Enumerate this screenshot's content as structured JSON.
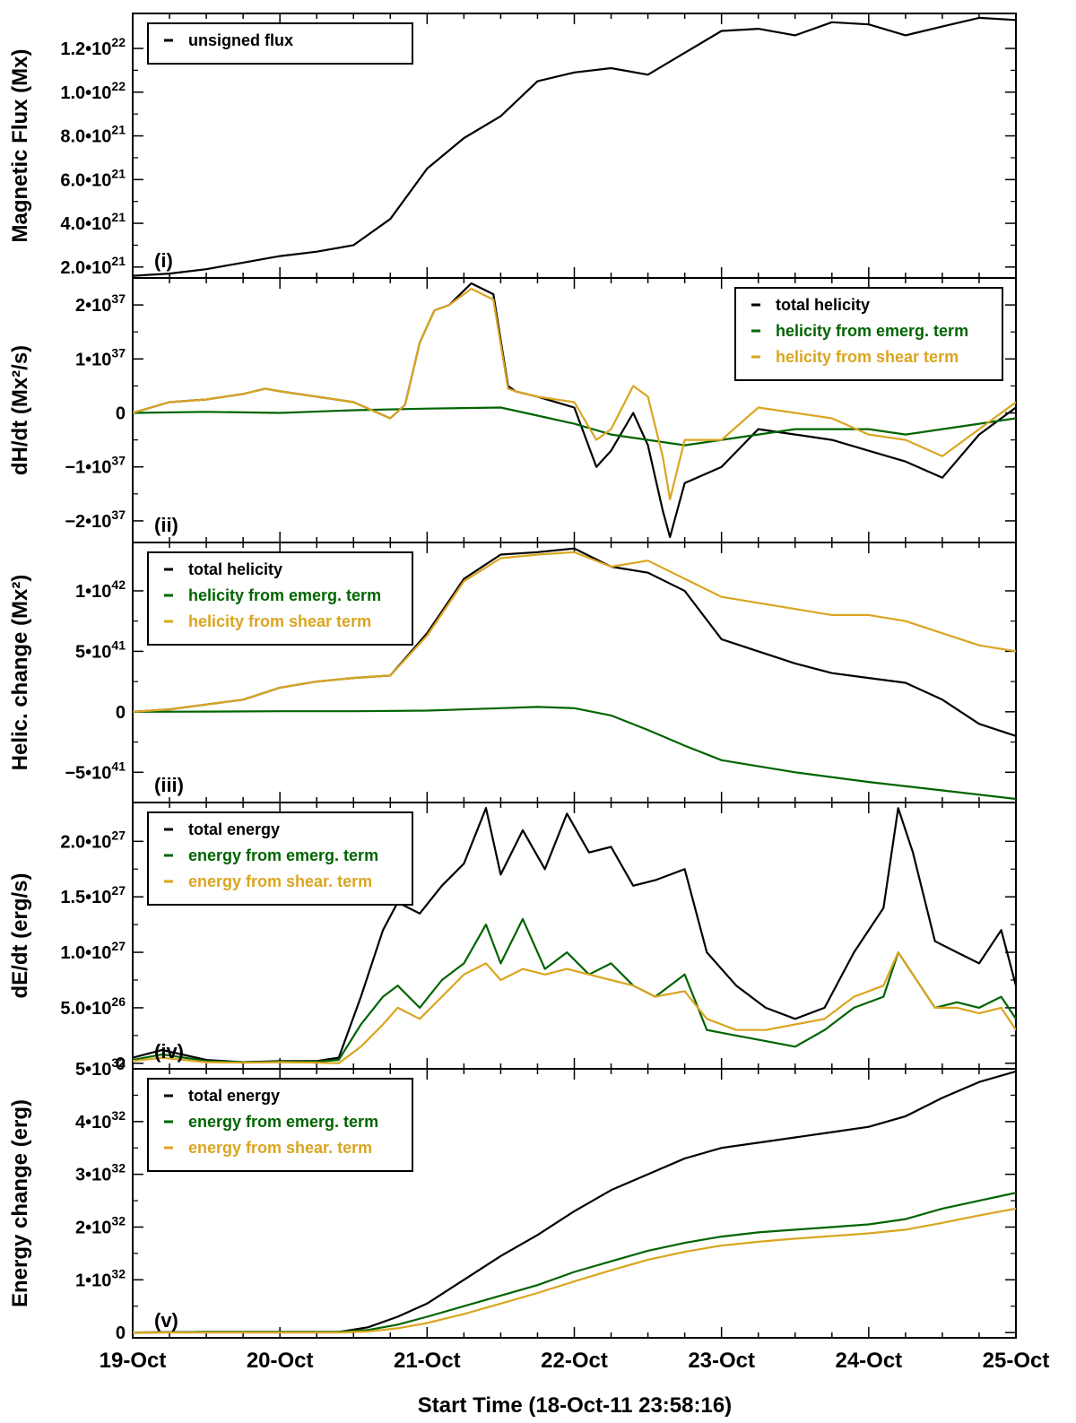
{
  "figure": {
    "xlabel": "Start Time (18-Oct-11 23:58:16)",
    "xticks": [
      "19-Oct",
      "20-Oct",
      "21-Oct",
      "22-Oct",
      "23-Oct",
      "24-Oct",
      "25-Oct"
    ],
    "xrange_days": [
      0.0,
      6.0
    ]
  },
  "colors": {
    "total": "#000000",
    "emerg": "#006400",
    "shear": "#DAA520"
  },
  "chart_data": [
    {
      "type": "line",
      "tag": "(i)",
      "ylabel": "Magnetic Flux (Mx)",
      "ylim": [
        1.5e+21,
        1.36e+22
      ],
      "yticks": [
        {
          "v": 2e+21,
          "m": "2.0•10",
          "e": "21"
        },
        {
          "v": 4e+21,
          "m": "4.0•10",
          "e": "21"
        },
        {
          "v": 6e+21,
          "m": "6.0•10",
          "e": "21"
        },
        {
          "v": 8e+21,
          "m": "8.0•10",
          "e": "21"
        },
        {
          "v": 1e+22,
          "m": "1.0•10",
          "e": "22"
        },
        {
          "v": 1.2e+22,
          "m": "1.2•10",
          "e": "22"
        }
      ],
      "legend": {
        "position": "top-left"
      },
      "series": [
        {
          "name": "unsigned flux",
          "color": "#000000",
          "x": [
            0.0,
            0.25,
            0.5,
            0.75,
            1.0,
            1.25,
            1.5,
            1.75,
            2.0,
            2.25,
            2.5,
            2.75,
            3.0,
            3.25,
            3.5,
            3.75,
            4.0,
            4.25,
            4.5,
            4.75,
            5.0,
            5.25,
            5.5,
            5.75,
            6.0
          ],
          "y": [
            1.6e+21,
            1.7e+21,
            1.9e+21,
            2.2e+21,
            2.5e+21,
            2.7e+21,
            3e+21,
            4.2e+21,
            6.5e+21,
            7.9e+21,
            8.9e+21,
            1.05e+22,
            1.09e+22,
            1.11e+22,
            1.08e+22,
            1.18e+22,
            1.28e+22,
            1.29e+22,
            1.26e+22,
            1.32e+22,
            1.31e+22,
            1.26e+22,
            1.3e+22,
            1.34e+22,
            1.33e+22
          ]
        }
      ]
    },
    {
      "type": "line",
      "tag": "(ii)",
      "ylabel": "dH/dt (Mx²/s)",
      "ylim": [
        -2.4e+37,
        2.5e+37
      ],
      "yticks": [
        {
          "v": -2e+37,
          "m": "−2•10",
          "e": "37"
        },
        {
          "v": -1e+37,
          "m": "−1•10",
          "e": "37"
        },
        {
          "v": 0,
          "m": "0",
          "e": ""
        },
        {
          "v": 1e+37,
          "m": "1•10",
          "e": "37"
        },
        {
          "v": 2e+37,
          "m": "2•10",
          "e": "37"
        }
      ],
      "legend": {
        "position": "top-right"
      },
      "series": [
        {
          "name": "total helicity",
          "color": "#000000",
          "x": [
            0.0,
            0.25,
            0.5,
            0.75,
            0.9,
            1.0,
            1.25,
            1.5,
            1.75,
            1.85,
            1.95,
            2.05,
            2.15,
            2.3,
            2.45,
            2.55,
            2.6,
            2.75,
            3.0,
            3.15,
            3.25,
            3.4,
            3.5,
            3.6,
            3.65,
            3.75,
            4.0,
            4.25,
            4.5,
            4.75,
            5.0,
            5.25,
            5.5,
            5.75,
            6.0
          ],
          "y": [
            0,
            2e+36,
            2.5e+36,
            3.5e+36,
            4.5e+36,
            4e+36,
            3e+36,
            2e+36,
            -1e+36,
            1.5e+36,
            1.3e+37,
            1.9e+37,
            2e+37,
            2.4e+37,
            2.2e+37,
            5e+36,
            4e+36,
            3e+36,
            1e+36,
            -1e+37,
            -7e+36,
            0.0,
            -6e+36,
            -1.8e+37,
            -2.3e+37,
            -1.3e+37,
            -1e+37,
            -3e+36,
            -4e+36,
            -5e+36,
            -7e+36,
            -9e+36,
            -1.2e+37,
            -4e+36,
            1e+36
          ]
        },
        {
          "name": "helicity from emerg. term",
          "color": "#006400",
          "x": [
            0.0,
            0.5,
            1.0,
            1.5,
            2.0,
            2.5,
            2.75,
            3.0,
            3.25,
            3.5,
            3.75,
            4.0,
            4.25,
            4.5,
            4.75,
            5.0,
            5.25,
            5.5,
            5.75,
            6.0
          ],
          "y": [
            0,
            2e+35,
            0.0,
            5e+35,
            8e+35,
            1e+36,
            -5e+35,
            -2e+36,
            -4e+36,
            -5e+36,
            -6e+36,
            -5e+36,
            -4e+36,
            -3e+36,
            -3e+36,
            -3e+36,
            -4e+36,
            -3e+36,
            -2e+36,
            -1e+36
          ]
        },
        {
          "name": "helicity from shear term",
          "color": "#DAA520",
          "x": [
            0.0,
            0.25,
            0.5,
            0.75,
            0.9,
            1.0,
            1.25,
            1.5,
            1.75,
            1.85,
            1.95,
            2.05,
            2.15,
            2.3,
            2.45,
            2.55,
            2.6,
            2.75,
            3.0,
            3.15,
            3.25,
            3.4,
            3.5,
            3.6,
            3.65,
            3.75,
            4.0,
            4.25,
            4.5,
            4.75,
            5.0,
            5.25,
            5.5,
            5.75,
            6.0
          ],
          "y": [
            0,
            2e+36,
            2.5e+36,
            3.5e+36,
            4.5e+36,
            4e+36,
            3e+36,
            2e+36,
            -1e+36,
            1.5e+36,
            1.3e+37,
            1.9e+37,
            2e+37,
            2.3e+37,
            2.1e+37,
            4.5e+36,
            4e+36,
            3e+36,
            2e+36,
            -5e+36,
            -3e+36,
            5e+36,
            3e+36,
            -8e+36,
            -1.6e+37,
            -5e+36,
            -5e+36,
            1e+36,
            0.0,
            -1e+36,
            -4e+36,
            -5e+36,
            -8e+36,
            -3e+36,
            2e+36
          ]
        }
      ]
    },
    {
      "type": "line",
      "tag": "(iii)",
      "ylabel": "Helic. change (Mx²)",
      "ylim": [
        -7.5e+41,
        1.4e+42
      ],
      "yticks": [
        {
          "v": -5e+41,
          "m": "−5•10",
          "e": "41"
        },
        {
          "v": 0,
          "m": "0",
          "e": ""
        },
        {
          "v": 5e+41,
          "m": "5•10",
          "e": "41"
        },
        {
          "v": 1e+42,
          "m": "1•10",
          "e": "42"
        }
      ],
      "legend": {
        "position": "top-left"
      },
      "series": [
        {
          "name": "total helicity",
          "color": "#000000",
          "x": [
            0.0,
            0.25,
            0.5,
            0.75,
            1.0,
            1.25,
            1.5,
            1.75,
            2.0,
            2.25,
            2.5,
            2.75,
            3.0,
            3.25,
            3.5,
            3.75,
            4.0,
            4.25,
            4.5,
            4.75,
            5.0,
            5.25,
            5.5,
            5.75,
            6.0
          ],
          "y": [
            0,
            2e+40,
            6e+40,
            1e+41,
            2e+41,
            2.5e+41,
            2.8e+41,
            3e+41,
            6.5e+41,
            1.1e+42,
            1.3e+42,
            1.32e+42,
            1.35e+42,
            1.2e+42,
            1.15e+42,
            1e+42,
            6e+41,
            5e+41,
            4e+41,
            3.2e+41,
            2.8e+41,
            2.4e+41,
            1e+41,
            -1e+41,
            -2e+41
          ]
        },
        {
          "name": "helicity from emerg. term",
          "color": "#006400",
          "x": [
            0.0,
            0.5,
            1.0,
            1.5,
            2.0,
            2.5,
            2.75,
            3.0,
            3.25,
            3.5,
            3.75,
            4.0,
            4.5,
            5.0,
            5.5,
            6.0
          ],
          "y": [
            0,
            2e+39,
            5e+39,
            5e+39,
            1e+40,
            3e+40,
            4e+40,
            3e+40,
            -3e+40,
            -1.5e+41,
            -2.8e+41,
            -4e+41,
            -5e+41,
            -5.8e+41,
            -6.5e+41,
            -7.2e+41
          ]
        },
        {
          "name": "helicity from shear term",
          "color": "#DAA520",
          "x": [
            0.0,
            0.25,
            0.5,
            0.75,
            1.0,
            1.25,
            1.5,
            1.75,
            2.0,
            2.25,
            2.5,
            2.75,
            3.0,
            3.25,
            3.5,
            3.75,
            4.0,
            4.25,
            4.5,
            4.75,
            5.0,
            5.25,
            5.5,
            5.75,
            6.0
          ],
          "y": [
            0,
            2e+40,
            6e+40,
            1e+41,
            2e+41,
            2.5e+41,
            2.8e+41,
            3e+41,
            6.3e+41,
            1.08e+42,
            1.27e+42,
            1.3e+42,
            1.32e+42,
            1.2e+42,
            1.25e+42,
            1.1e+42,
            9.5e+41,
            9e+41,
            8.5e+41,
            8e+41,
            8e+41,
            7.5e+41,
            6.5e+41,
            5.5e+41,
            5e+41
          ]
        }
      ]
    },
    {
      "type": "line",
      "tag": "(iv)",
      "ylabel": "dE/dt (erg/s)",
      "ylim": [
        -5e+25,
        2.35e+27
      ],
      "yticks": [
        {
          "v": 0,
          "m": "0",
          "e": ""
        },
        {
          "v": 5e+26,
          "m": "5.0•10",
          "e": "26"
        },
        {
          "v": 1e+27,
          "m": "1.0•10",
          "e": "27"
        },
        {
          "v": 1.5e+27,
          "m": "1.5•10",
          "e": "27"
        },
        {
          "v": 2e+27,
          "m": "2.0•10",
          "e": "27"
        }
      ],
      "legend": {
        "position": "top-left"
      },
      "series": [
        {
          "name": "total energy",
          "color": "#000000",
          "x": [
            0.0,
            0.2,
            0.5,
            0.75,
            1.0,
            1.25,
            1.4,
            1.55,
            1.7,
            1.8,
            1.95,
            2.1,
            2.25,
            2.4,
            2.5,
            2.65,
            2.8,
            2.95,
            3.1,
            3.25,
            3.4,
            3.55,
            3.75,
            3.9,
            4.1,
            4.3,
            4.5,
            4.7,
            4.9,
            5.1,
            5.2,
            5.3,
            5.45,
            5.6,
            5.75,
            5.9,
            6.0
          ],
          "y": [
            5e+25,
            1.2e+26,
            3e+25,
            1e+25,
            2e+25,
            2e+25,
            5e+25,
            6e+26,
            1.2e+27,
            1.45e+27,
            1.35e+27,
            1.6e+27,
            1.8e+27,
            2.3e+27,
            1.7e+27,
            2.1e+27,
            1.75e+27,
            2.25e+27,
            1.9e+27,
            1.95e+27,
            1.6e+27,
            1.65e+27,
            1.75e+27,
            1e+27,
            7e+26,
            5e+26,
            4e+26,
            5e+26,
            1e+27,
            1.4e+27,
            2.3e+27,
            1.9e+27,
            1.1e+27,
            1e+27,
            9e+26,
            1.2e+27,
            7e+26
          ]
        },
        {
          "name": "energy from emerg. term",
          "color": "#006400",
          "x": [
            0.0,
            0.2,
            0.5,
            0.75,
            1.0,
            1.25,
            1.4,
            1.55,
            1.7,
            1.8,
            1.95,
            2.1,
            2.25,
            2.4,
            2.5,
            2.65,
            2.8,
            2.95,
            3.1,
            3.25,
            3.4,
            3.55,
            3.75,
            3.9,
            4.1,
            4.3,
            4.5,
            4.7,
            4.9,
            5.1,
            5.2,
            5.3,
            5.45,
            5.6,
            5.75,
            5.9,
            6.0
          ],
          "y": [
            3e+25,
            8e+25,
            2e+25,
            1e+25,
            1.5e+25,
            1.5e+25,
            3e+25,
            3.5e+26,
            6e+26,
            7e+26,
            5e+26,
            7.5e+26,
            9e+26,
            1.25e+27,
            9e+26,
            1.3e+27,
            8.5e+26,
            1e+27,
            8e+26,
            9e+26,
            7e+26,
            6e+26,
            8e+26,
            3e+26,
            2.5e+26,
            2e+26,
            1.5e+26,
            3e+26,
            5e+26,
            6e+26,
            1e+27,
            8e+26,
            5e+26,
            5.5e+26,
            5e+26,
            6e+26,
            4e+26
          ]
        },
        {
          "name": "energy from shear. term",
          "color": "#DAA520",
          "x": [
            0.0,
            0.2,
            0.5,
            0.75,
            1.0,
            1.25,
            1.4,
            1.55,
            1.7,
            1.8,
            1.95,
            2.1,
            2.25,
            2.4,
            2.5,
            2.65,
            2.8,
            2.95,
            3.1,
            3.25,
            3.4,
            3.55,
            3.75,
            3.9,
            4.1,
            4.3,
            4.5,
            4.7,
            4.9,
            5.1,
            5.2,
            5.3,
            5.45,
            5.6,
            5.75,
            5.9,
            6.0
          ],
          "y": [
            2e+25,
            5e+25,
            1e+25,
            5e+24,
            1e+25,
            5e+24,
            0.0,
            1.5e+26,
            3.5e+26,
            5e+26,
            4e+26,
            6e+26,
            8e+26,
            9e+26,
            7.5e+26,
            8.5e+26,
            8e+26,
            8.5e+26,
            8e+26,
            7.5e+26,
            7e+26,
            6e+26,
            6.5e+26,
            4e+26,
            3e+26,
            3e+26,
            3.5e+26,
            4e+26,
            6e+26,
            7e+26,
            1e+27,
            8e+26,
            5e+26,
            5e+26,
            4.5e+26,
            5e+26,
            3e+26
          ]
        }
      ]
    },
    {
      "type": "line",
      "tag": "(v)",
      "ylabel": "Energy change (erg)",
      "ylim": [
        -1e+31,
        5e+32
      ],
      "yticks": [
        {
          "v": 0,
          "m": "0",
          "e": ""
        },
        {
          "v": 1e+32,
          "m": "1•10",
          "e": "32"
        },
        {
          "v": 2e+32,
          "m": "2•10",
          "e": "32"
        },
        {
          "v": 3e+32,
          "m": "3•10",
          "e": "32"
        },
        {
          "v": 4e+32,
          "m": "4•10",
          "e": "32"
        },
        {
          "v": 5e+32,
          "m": "5•10",
          "e": "32"
        }
      ],
      "legend": {
        "position": "top-left"
      },
      "series": [
        {
          "name": "total energy",
          "color": "#000000",
          "x": [
            0.0,
            0.5,
            1.0,
            1.4,
            1.6,
            1.8,
            2.0,
            2.25,
            2.5,
            2.75,
            3.0,
            3.25,
            3.5,
            3.75,
            4.0,
            4.25,
            4.5,
            4.75,
            5.0,
            5.25,
            5.5,
            5.75,
            6.0
          ],
          "y": [
            0,
            1e+30,
            1e+30,
            1e+30,
            1e+31,
            3e+31,
            5.5e+31,
            1e+32,
            1.45e+32,
            1.85e+32,
            2.3e+32,
            2.7e+32,
            3e+32,
            3.3e+32,
            3.5e+32,
            3.6e+32,
            3.7e+32,
            3.8e+32,
            3.9e+32,
            4.1e+32,
            4.45e+32,
            4.75e+32,
            4.95e+32
          ]
        },
        {
          "name": "energy from emerg. term",
          "color": "#006400",
          "x": [
            0.0,
            0.5,
            1.0,
            1.4,
            1.6,
            1.8,
            2.0,
            2.25,
            2.5,
            2.75,
            3.0,
            3.25,
            3.5,
            3.75,
            4.0,
            4.25,
            4.5,
            4.75,
            5.0,
            5.25,
            5.5,
            5.75,
            6.0
          ],
          "y": [
            0,
            1e+30,
            1e+30,
            1e+30,
            5e+30,
            1.5e+31,
            3e+31,
            5e+31,
            7e+31,
            9e+31,
            1.15e+32,
            1.35e+32,
            1.55e+32,
            1.7e+32,
            1.82e+32,
            1.9e+32,
            1.95e+32,
            2e+32,
            2.05e+32,
            2.15e+32,
            2.35e+32,
            2.5e+32,
            2.65e+32
          ]
        },
        {
          "name": "energy from shear. term",
          "color": "#DAA520",
          "x": [
            0.0,
            0.5,
            1.0,
            1.4,
            1.6,
            1.8,
            2.0,
            2.25,
            2.5,
            2.75,
            3.0,
            3.25,
            3.5,
            3.75,
            4.0,
            4.25,
            4.5,
            4.75,
            5.0,
            5.25,
            5.5,
            5.75,
            6.0
          ],
          "y": [
            0,
            0.0,
            0.0,
            0.0,
            2e+30,
            8e+30,
            1.8e+31,
            3.5e+31,
            5.5e+31,
            7.5e+31,
            9.7e+31,
            1.18e+32,
            1.38e+32,
            1.53e+32,
            1.65e+32,
            1.72e+32,
            1.78e+32,
            1.83e+32,
            1.88e+32,
            1.95e+32,
            2.08e+32,
            2.22e+32,
            2.35e+32
          ]
        }
      ]
    }
  ]
}
